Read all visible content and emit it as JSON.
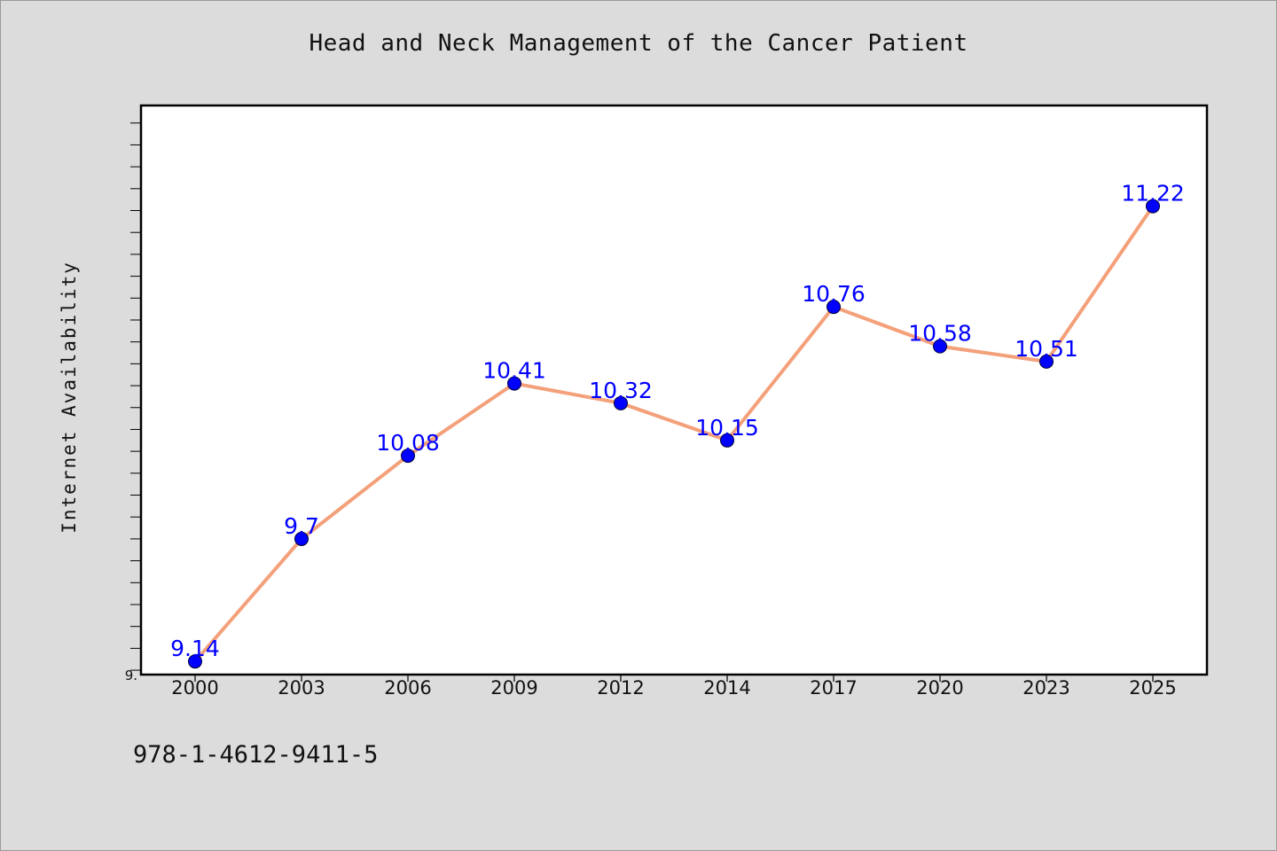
{
  "chart_data": {
    "type": "line",
    "title": "Head and Neck Management of the Cancer Patient",
    "ylabel": "Internet Availability",
    "xlabel": "",
    "categories": [
      "2000",
      "2003",
      "2006",
      "2009",
      "2012",
      "2014",
      "2017",
      "2020",
      "2023",
      "2025"
    ],
    "series": [
      {
        "values": [
          9.14,
          9.7,
          10.08,
          10.41,
          10.32,
          10.15,
          10.76,
          10.58,
          10.51,
          11.22
        ],
        "data_labels": [
          "9.14",
          "9.7",
          "10.08",
          "10.41",
          "10.32",
          "10.15",
          "10.76",
          "10.58",
          "10.51",
          "11.22"
        ],
        "line_color": "#f4a07a",
        "marker_color": "#0000ff"
      }
    ],
    "ylim": [
      9.08,
      11.68
    ],
    "y_tick_label": "9.",
    "grid": false,
    "legend": "none"
  },
  "footer_text": "978-1-4612-9411-5",
  "colors": {
    "background": "#dcdcdc",
    "plot_background": "#ffffff",
    "data_label": "#0000ff"
  }
}
